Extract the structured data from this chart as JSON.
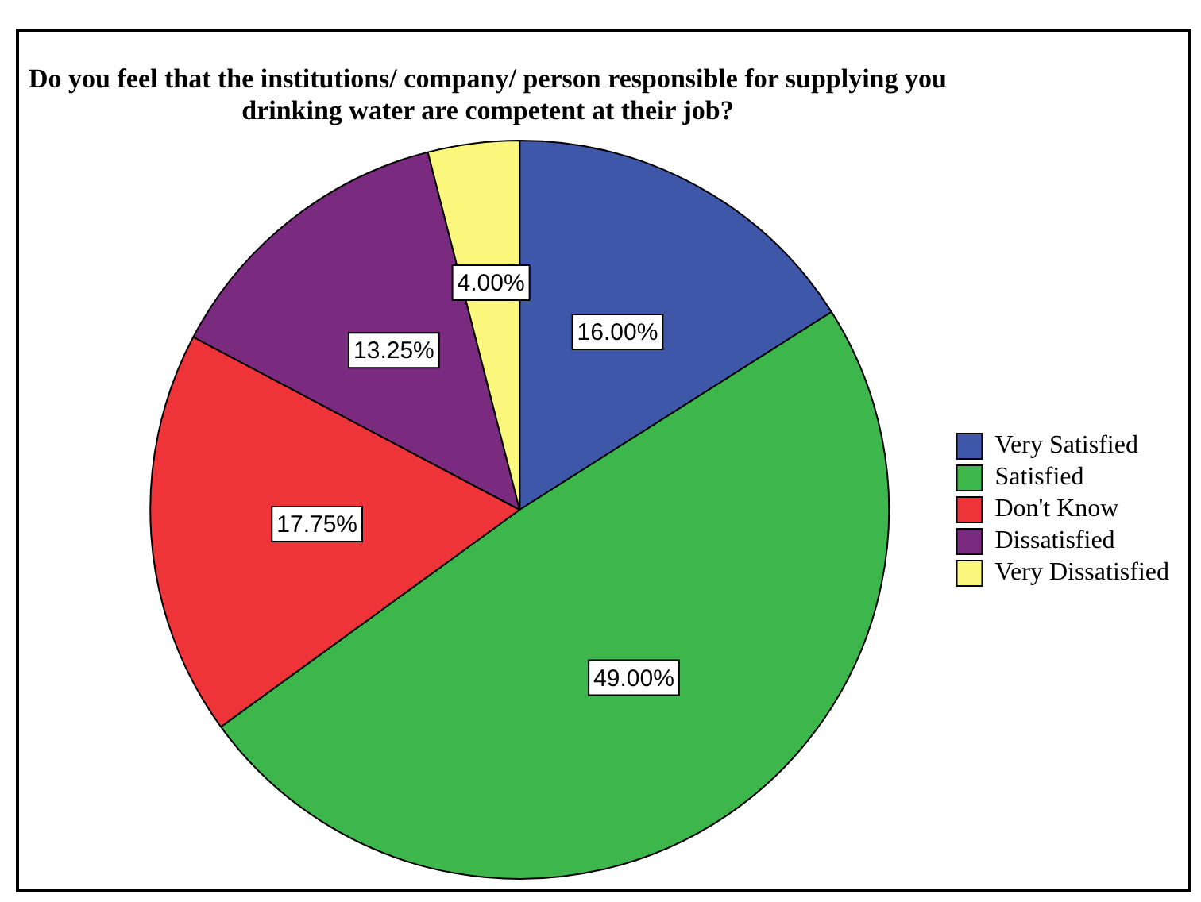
{
  "chart_data": {
    "type": "pie",
    "title": "Do you feel that the institutions/ company/ person responsible for supplying you drinking water are competent at their job?",
    "categories": [
      "Very Satisfied",
      "Satisfied",
      "Don't Know",
      "Dissatisfied",
      "Very Dissatisfied"
    ],
    "values": [
      16.0,
      49.0,
      17.75,
      13.25,
      4.0
    ],
    "colors": [
      "#3f57a8",
      "#3db64b",
      "#ee3439",
      "#7a2b80",
      "#fbf67c"
    ],
    "value_labels": [
      "16.00%",
      "49.00%",
      "17.75%",
      "13.25%",
      "4.00%"
    ],
    "legend": "right"
  }
}
